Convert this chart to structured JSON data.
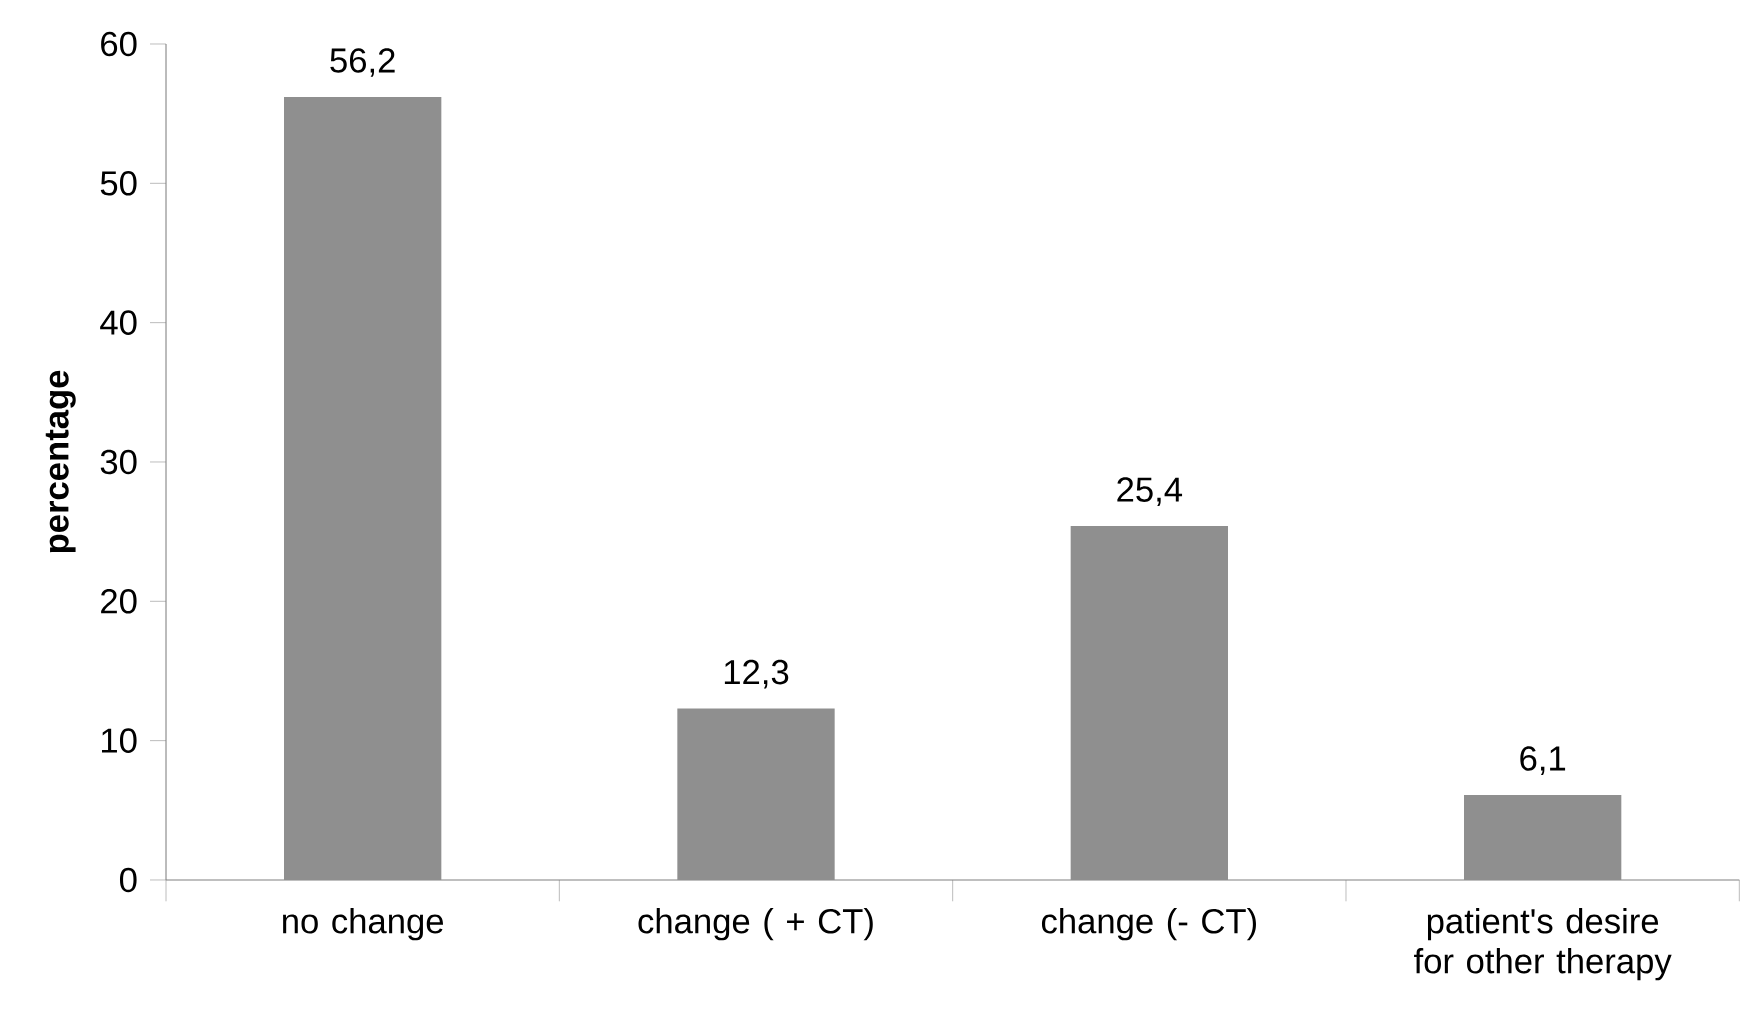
{
  "chart_data": {
    "type": "bar",
    "ylabel": "percentage",
    "categories": [
      "no change",
      "change ( + CT)",
      "change (- CT)",
      "patient's desire for other therapy"
    ],
    "values": [
      56.2,
      12.3,
      25.4,
      6.1
    ],
    "value_labels": [
      "56,2",
      "12,3",
      "25,4",
      "6,1"
    ],
    "color": "#8f8f8f",
    "ylim": [
      0,
      60
    ],
    "yticks": [
      0,
      10,
      20,
      30,
      40,
      50,
      60
    ],
    "grid": false
  }
}
